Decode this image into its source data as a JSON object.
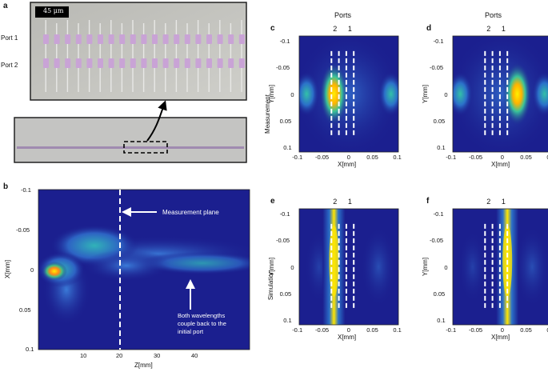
{
  "figure": {
    "panel_labels": {
      "a": "a",
      "b": "b",
      "c": "c",
      "d": "d",
      "e": "e",
      "f": "f"
    },
    "row_labels": {
      "measurement": "Measurement",
      "simulation": "Simulation"
    },
    "ports_title": "Ports",
    "port_numbers": [
      "2",
      "1"
    ],
    "panel_a": {
      "scale_label": "45 μm",
      "port1": "Port 1",
      "port2": "Port 2"
    },
    "panel_b": {
      "ylabel": "X[mm]",
      "xlabel": "Z[mm]",
      "y_ticks": [
        "-0.1",
        "-0.05",
        "0",
        "0.05",
        "0.1"
      ],
      "x_ticks": [
        "10",
        "20",
        "30",
        "40"
      ],
      "annot_plane": "Measurement plane",
      "annot_couple": [
        "Both wavelengths",
        "couple back to the",
        "initial port"
      ]
    },
    "heatmap_axes": {
      "ylabel": "Y[mm]",
      "xlabel": "X[mm]",
      "y_ticks": [
        "-0.1",
        "-0.05",
        "0",
        "0.05",
        "0.1"
      ],
      "x_ticks": [
        "-0.1",
        "-0.05",
        "0",
        "0.05",
        "0.1"
      ]
    }
  },
  "colors": {
    "bg_dark": "#1b1f8f",
    "accent": "#ffe600",
    "dash": "#ffffff"
  }
}
